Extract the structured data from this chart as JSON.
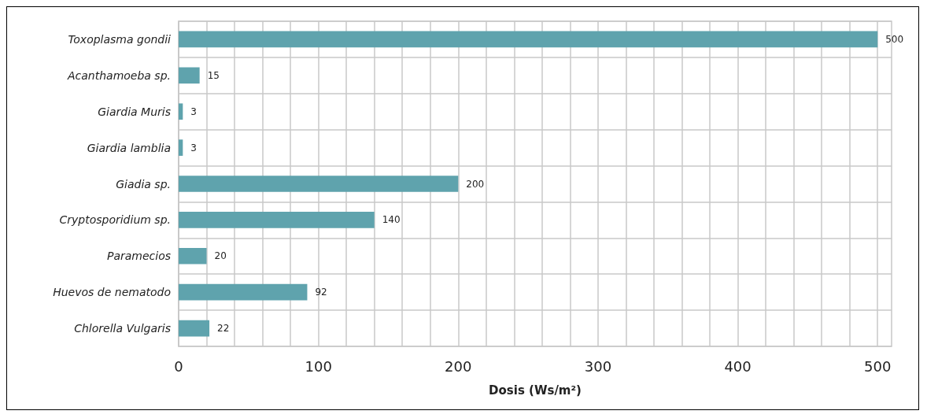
{
  "chart_data": {
    "type": "bar",
    "orientation": "horizontal",
    "xlabel": "Dosis (Ws/m²)",
    "categories": [
      "Toxoplasma gondii",
      "Acanthamoeba sp.",
      "Giardia Muris",
      "Giardia lamblia",
      "Giadia sp.",
      "Cryptosporidium sp.",
      "Paramecios",
      "Huevos de nematodo",
      "Chlorella Vulgaris"
    ],
    "values": [
      500,
      15,
      3,
      3,
      200,
      140,
      20,
      92,
      22
    ],
    "color": "#5fa3ad",
    "data_labels": true,
    "grid": true,
    "xlim": [
      0,
      510
    ],
    "xticks": [
      0,
      {
        "value": 20,
        "label": null
      },
      {
        "value": 40,
        "label": null
      },
      {
        "value": 60,
        "label": null
      },
      {
        "value": 80,
        "label": null
      },
      100,
      {
        "value": 120,
        "label": null
      },
      {
        "value": 140,
        "label": null
      },
      {
        "value": 160,
        "label": null
      },
      {
        "value": 180,
        "label": null
      },
      200,
      {
        "value": 220,
        "label": null
      },
      {
        "value": 240,
        "label": null
      },
      {
        "value": 260,
        "label": null
      },
      {
        "value": 280,
        "label": null
      },
      300,
      {
        "value": 320,
        "label": null
      },
      {
        "value": 340,
        "label": null
      },
      {
        "value": 360,
        "label": null
      },
      {
        "value": 380,
        "label": null
      },
      400,
      {
        "value": 420,
        "label": null
      },
      {
        "value": 440,
        "label": null
      },
      {
        "value": 460,
        "label": null
      },
      {
        "value": 480,
        "label": null
      },
      500
    ]
  }
}
